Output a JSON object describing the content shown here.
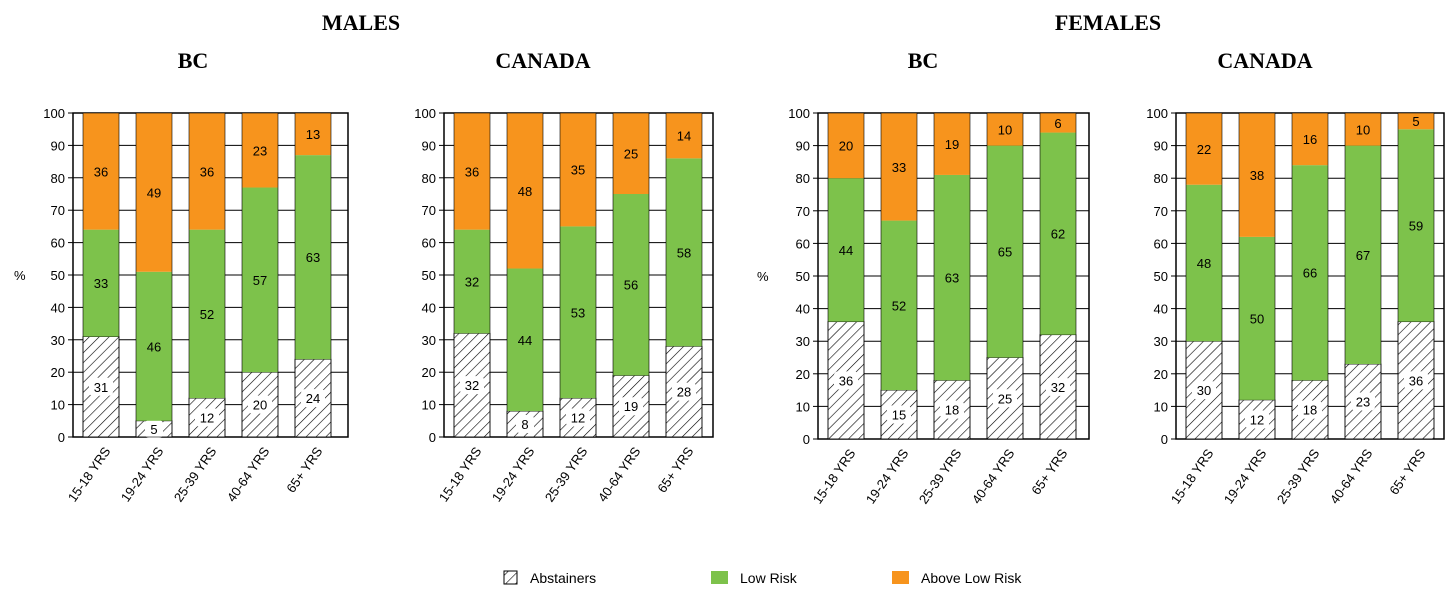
{
  "group_titles": [
    "MALES",
    "FEMALES"
  ],
  "legend": {
    "items": [
      {
        "label": "Abstainers",
        "pattern": "hatch"
      },
      {
        "label": "Low Risk",
        "color": "#7dc24b"
      },
      {
        "label": "Above Low Risk",
        "color": "#f7941d"
      }
    ]
  },
  "colors": {
    "low_risk": "#7dc24b",
    "above_low_risk": "#f7941d",
    "hatch_background": "#ffffff"
  },
  "chart_data": [
    {
      "type": "bar",
      "stacked": true,
      "group": "MALES",
      "title": "BC",
      "ylabel": "%",
      "ylim": [
        0,
        100
      ],
      "yticks": [
        0,
        10,
        20,
        30,
        40,
        50,
        60,
        70,
        80,
        90,
        100
      ],
      "categories": [
        "15-18 YRS",
        "19-24 YRS",
        "25-39 YRS",
        "40-64 YRS",
        "65+ YRS"
      ],
      "series": [
        {
          "name": "Abstainers",
          "values": [
            31,
            5,
            12,
            20,
            24
          ]
        },
        {
          "name": "Low Risk",
          "values": [
            33,
            46,
            52,
            57,
            63
          ]
        },
        {
          "name": "Above Low Risk",
          "values": [
            36,
            49,
            36,
            23,
            13
          ]
        }
      ]
    },
    {
      "type": "bar",
      "stacked": true,
      "group": "MALES",
      "title": "CANADA",
      "ylabel": "",
      "ylim": [
        0,
        100
      ],
      "yticks": [
        0,
        10,
        20,
        30,
        40,
        50,
        60,
        70,
        80,
        90,
        100
      ],
      "categories": [
        "15-18 YRS",
        "19-24 YRS",
        "25-39 YRS",
        "40-64 YRS",
        "65+ YRS"
      ],
      "series": [
        {
          "name": "Abstainers",
          "values": [
            32,
            8,
            12,
            19,
            28
          ]
        },
        {
          "name": "Low Risk",
          "values": [
            32,
            44,
            53,
            56,
            58
          ]
        },
        {
          "name": "Above Low Risk",
          "values": [
            36,
            48,
            35,
            25,
            14
          ]
        }
      ]
    },
    {
      "type": "bar",
      "stacked": true,
      "group": "FEMALES",
      "title": "BC",
      "ylabel": "%",
      "ylim": [
        0,
        100
      ],
      "yticks": [
        0,
        10,
        20,
        30,
        40,
        50,
        60,
        70,
        80,
        90,
        100
      ],
      "categories": [
        "15-18 YRS",
        "19-24 YRS",
        "25-39 YRS",
        "40-64 YRS",
        "65+ YRS"
      ],
      "series": [
        {
          "name": "Abstainers",
          "values": [
            36,
            15,
            18,
            25,
            32
          ]
        },
        {
          "name": "Low Risk",
          "values": [
            44,
            52,
            63,
            65,
            62
          ]
        },
        {
          "name": "Above Low Risk",
          "values": [
            20,
            33,
            19,
            10,
            6
          ]
        }
      ]
    },
    {
      "type": "bar",
      "stacked": true,
      "group": "FEMALES",
      "title": "CANADA",
      "ylabel": "",
      "ylim": [
        0,
        100
      ],
      "yticks": [
        0,
        10,
        20,
        30,
        40,
        50,
        60,
        70,
        80,
        90,
        100
      ],
      "categories": [
        "15-18 YRS",
        "19-24 YRS",
        "25-39 YRS",
        "40-64 YRS",
        "65+ YRS"
      ],
      "series": [
        {
          "name": "Abstainers",
          "values": [
            30,
            12,
            18,
            23,
            36
          ]
        },
        {
          "name": "Low Risk",
          "values": [
            48,
            50,
            66,
            67,
            59
          ]
        },
        {
          "name": "Above Low Risk",
          "values": [
            22,
            38,
            16,
            10,
            5
          ]
        }
      ]
    }
  ]
}
